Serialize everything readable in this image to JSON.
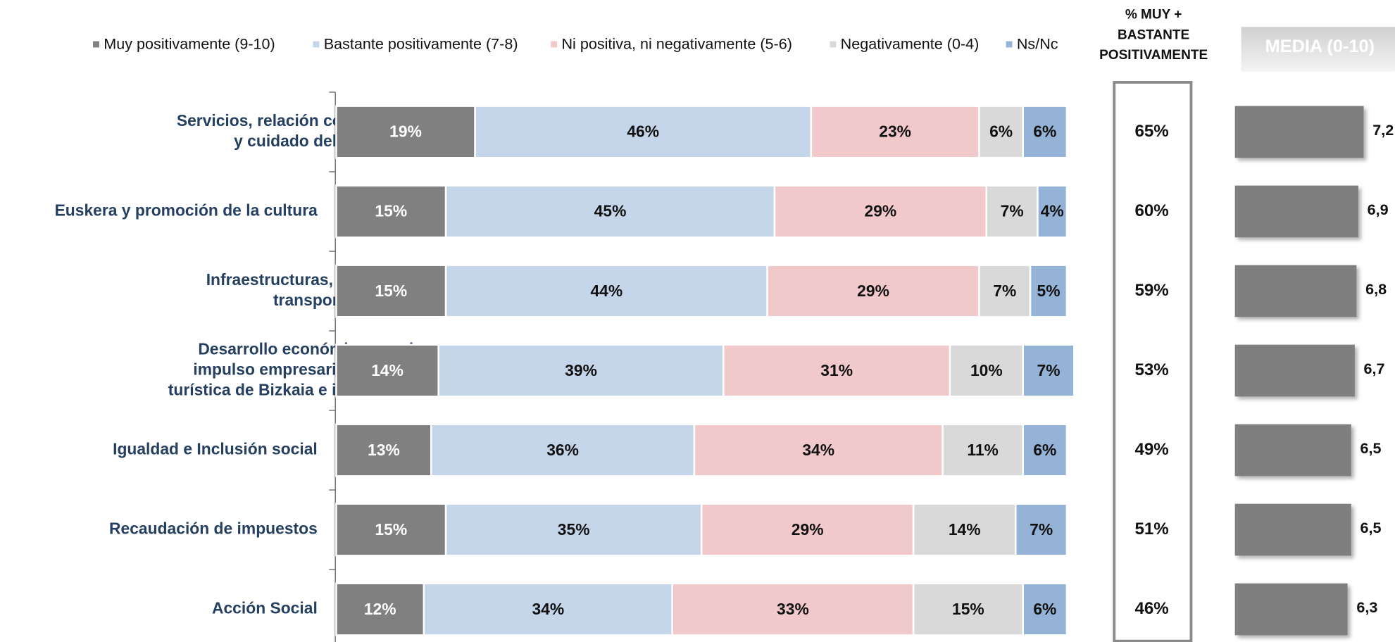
{
  "chart_data": {
    "type": "stacked_barh",
    "categories": [
      [
        "Servicios, relación con la ciudadanía",
        "y cuidado del entorno"
      ],
      [
        "Euskera y promoción de la cultura"
      ],
      [
        "Infraestructuras, carreteras y",
        "transportes"
      ],
      [
        "Desarrollo económico, empleo,",
        "impulso empresarial, promoción",
        "turística de Bizkaia e inversión exterior"
      ],
      [
        "Igualdad e Inclusión social"
      ],
      [
        "Recaudación de impuestos"
      ],
      [
        "Acción Social"
      ]
    ],
    "xlim": [
      0,
      100
    ],
    "series": [
      {
        "name": "Muy positivamente  (9-10)",
        "color": "#808080",
        "values": [
          19,
          15,
          15,
          14,
          13,
          15,
          12
        ],
        "value_labels": [
          "19%",
          "15%",
          "15%",
          "14%",
          "13%",
          "15%",
          "12%"
        ]
      },
      {
        "name": "Bastante positivamente (7-8)",
        "color": "#c5d5ea",
        "values": [
          46,
          45,
          44,
          39,
          36,
          35,
          34
        ],
        "value_labels": [
          "46%",
          "45%",
          "44%",
          "39%",
          "36%",
          "35%",
          "34%"
        ]
      },
      {
        "name": "Ni positiva, ni negativamente (5-6)",
        "color": "#f2c9cb",
        "values": [
          23,
          29,
          29,
          31,
          34,
          29,
          33
        ],
        "value_labels": [
          "23%",
          "29%",
          "29%",
          "31%",
          "34%",
          "29%",
          "33%"
        ]
      },
      {
        "name": "Negativamente (0-4)",
        "color": "#d9d9d9",
        "values": [
          6,
          7,
          7,
          10,
          11,
          14,
          15
        ],
        "value_labels": [
          "6%",
          "7%",
          "7%",
          "10%",
          "11%",
          "14%",
          "15%"
        ]
      },
      {
        "name": "Ns/Nc",
        "color": "#95b3d7",
        "values": [
          6,
          4,
          5,
          7,
          6,
          7,
          6
        ],
        "value_labels": [
          "6%",
          "4%",
          "5%",
          "7%",
          "6%",
          "7%",
          "6%"
        ]
      }
    ],
    "positive": {
      "title": [
        "% MUY +",
        "BASTANTE",
        "POSITIVAMENTE"
      ],
      "values": [
        65,
        60,
        59,
        53,
        49,
        51,
        46
      ],
      "value_labels": [
        "65%",
        "60%",
        "59%",
        "53%",
        "49%",
        "51%",
        "46%"
      ]
    },
    "mean": {
      "title": "MEDIA (0-10)",
      "color": "#7f7f7f",
      "values": [
        7.2,
        6.9,
        6.8,
        6.7,
        6.5,
        6.5,
        6.3
      ],
      "value_labels": [
        "7,2",
        "6,9",
        "6,8",
        "6,7",
        "6,5",
        "6,5",
        "6,3"
      ]
    }
  }
}
